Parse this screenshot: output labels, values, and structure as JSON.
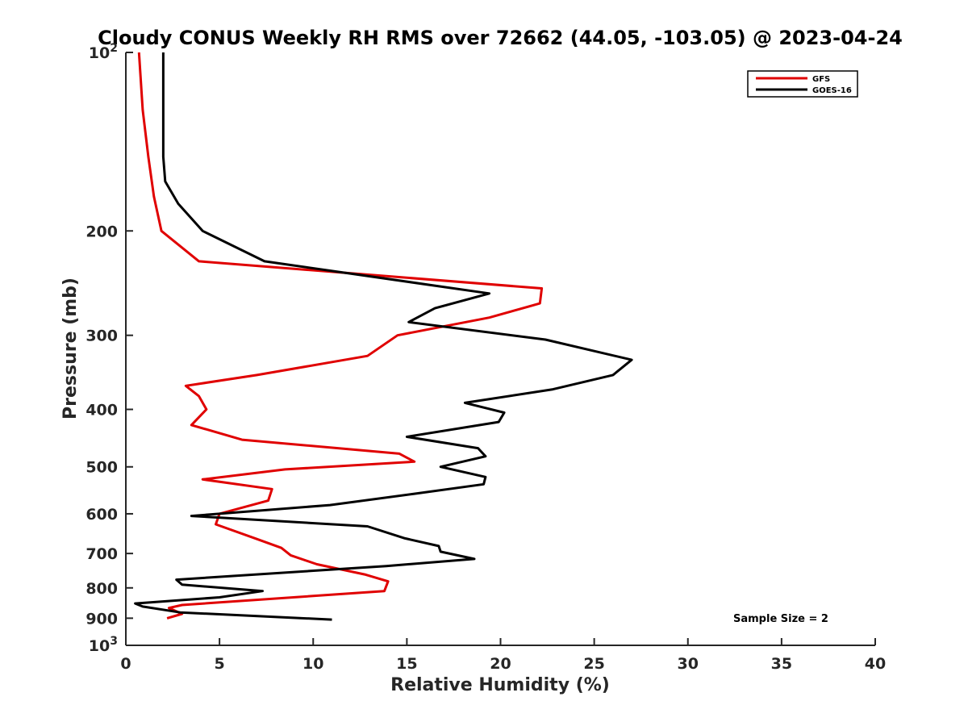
{
  "chart_data": {
    "type": "line",
    "title": "Cloudy CONUS Weekly RH RMS over 72662 (44.05, -103.05) @ 2023-04-24",
    "xlabel": "Relative Humidity (%)",
    "ylabel": "Pressure (mb)",
    "xlim": [
      0,
      40
    ],
    "ylim": [
      100,
      1000
    ],
    "y_scale": "log",
    "y_reversed": true,
    "grid": false,
    "legend_position": "top-right",
    "x_ticks": [
      "0",
      "5",
      "10",
      "15",
      "20",
      "25",
      "30",
      "35",
      "40"
    ],
    "y_ticks": [
      {
        "value": 100,
        "base": "10",
        "exp": "2"
      },
      {
        "value": 200,
        "label": "200"
      },
      {
        "value": 300,
        "label": "300"
      },
      {
        "value": 400,
        "label": "400"
      },
      {
        "value": 500,
        "label": "500"
      },
      {
        "value": 600,
        "label": "600"
      },
      {
        "value": 700,
        "label": "700"
      },
      {
        "value": 800,
        "label": "800"
      },
      {
        "value": 900,
        "label": "900"
      },
      {
        "value": 1000,
        "base": "10",
        "exp": "3"
      }
    ],
    "annotation": "Sample Size = 2",
    "series": [
      {
        "name": "GFS",
        "color": "#e00000",
        "points": [
          [
            0.7,
            100
          ],
          [
            0.9,
            125
          ],
          [
            1.2,
            150
          ],
          [
            1.5,
            175
          ],
          [
            1.9,
            200
          ],
          [
            3.9,
            225
          ],
          [
            22.2,
            250
          ],
          [
            22.1,
            265
          ],
          [
            19.4,
            280
          ],
          [
            14.5,
            300
          ],
          [
            12.9,
            325
          ],
          [
            7.0,
            350
          ],
          [
            3.2,
            365
          ],
          [
            3.9,
            380
          ],
          [
            4.3,
            400
          ],
          [
            3.5,
            425
          ],
          [
            6.2,
            450
          ],
          [
            14.6,
            475
          ],
          [
            15.4,
            490
          ],
          [
            8.5,
            505
          ],
          [
            4.1,
            525
          ],
          [
            7.8,
            545
          ],
          [
            7.6,
            570
          ],
          [
            5.0,
            600
          ],
          [
            4.8,
            625
          ],
          [
            6.9,
            660
          ],
          [
            8.3,
            685
          ],
          [
            8.8,
            705
          ],
          [
            10.2,
            730
          ],
          [
            12.8,
            760
          ],
          [
            14.0,
            780
          ],
          [
            13.8,
            810
          ],
          [
            3.0,
            855
          ],
          [
            2.3,
            865
          ],
          [
            3.0,
            885
          ],
          [
            2.2,
            900
          ]
        ]
      },
      {
        "name": "GOES-16",
        "color": "#000000",
        "points": [
          [
            2.0,
            100
          ],
          [
            2.0,
            125
          ],
          [
            2.0,
            150
          ],
          [
            2.1,
            165
          ],
          [
            2.8,
            180
          ],
          [
            4.1,
            200
          ],
          [
            7.4,
            225
          ],
          [
            19.4,
            255
          ],
          [
            16.5,
            270
          ],
          [
            15.1,
            285
          ],
          [
            22.4,
            305
          ],
          [
            27.0,
            330
          ],
          [
            26.0,
            350
          ],
          [
            22.8,
            370
          ],
          [
            18.1,
            390
          ],
          [
            20.2,
            405
          ],
          [
            19.9,
            420
          ],
          [
            15.0,
            445
          ],
          [
            18.8,
            465
          ],
          [
            19.2,
            480
          ],
          [
            16.8,
            500
          ],
          [
            19.2,
            520
          ],
          [
            19.1,
            535
          ],
          [
            15.4,
            555
          ],
          [
            10.9,
            580
          ],
          [
            3.5,
            605
          ],
          [
            12.9,
            630
          ],
          [
            14.9,
            660
          ],
          [
            16.7,
            680
          ],
          [
            16.8,
            695
          ],
          [
            18.6,
            715
          ],
          [
            13.9,
            735
          ],
          [
            2.7,
            775
          ],
          [
            3.0,
            790
          ],
          [
            7.3,
            810
          ],
          [
            5.0,
            830
          ],
          [
            0.5,
            850
          ],
          [
            0.9,
            860
          ],
          [
            2.9,
            880
          ],
          [
            11.0,
            905
          ]
        ]
      }
    ]
  }
}
